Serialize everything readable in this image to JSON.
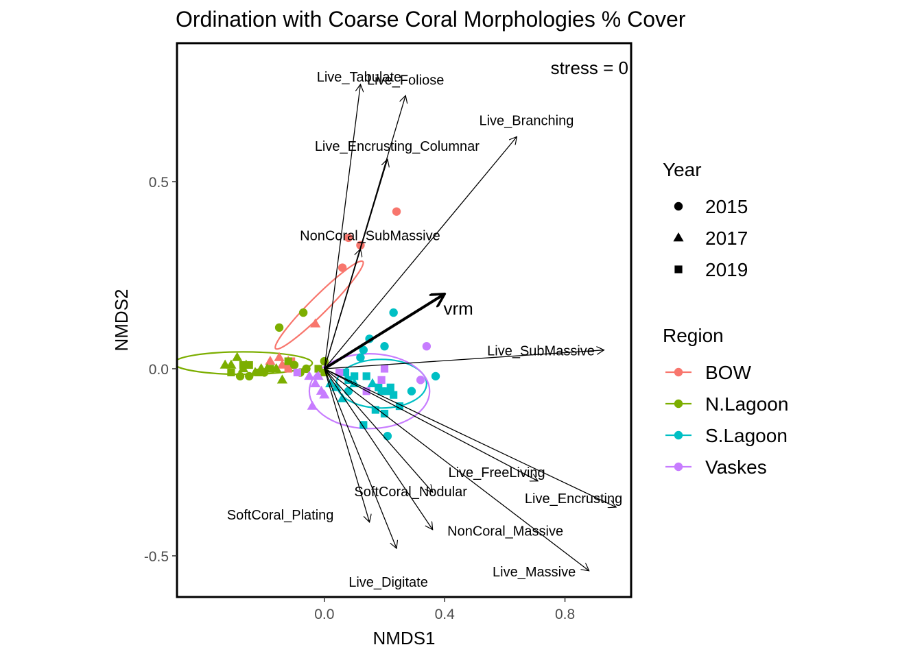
{
  "chart_data": {
    "type": "scatter",
    "title": "Ordination with Coarse Coral Morphologies % Cover",
    "xlabel": "NMDS1",
    "ylabel": "NMDS2",
    "xlim": [
      -0.49,
      1.02
    ],
    "ylim": [
      -0.61,
      0.87
    ],
    "x_ticks": [
      {
        "v": 0.0,
        "label": "0.0"
      },
      {
        "v": 0.4,
        "label": "0.4"
      },
      {
        "v": 0.8,
        "label": "0.8"
      }
    ],
    "y_ticks": [
      {
        "v": 0.5,
        "label": "0.5"
      },
      {
        "v": 0.0,
        "label": "0.0"
      },
      {
        "v": -0.5,
        "label": "-0.5"
      }
    ],
    "annotation": "stress = 0",
    "colors": {
      "BOW": "#F8766D",
      "N.Lagoon": "#7CAE00",
      "S.Lagoon": "#00BFC4",
      "Vaskes": "#C77CFF"
    },
    "legend_year": {
      "title": "Year",
      "items": [
        {
          "label": "2015",
          "shape": "circle"
        },
        {
          "label": "2017",
          "shape": "triangle"
        },
        {
          "label": "2019",
          "shape": "square"
        }
      ]
    },
    "legend_region": {
      "title": "Region",
      "items": [
        {
          "label": "BOW"
        },
        {
          "label": "N.Lagoon"
        },
        {
          "label": "S.Lagoon"
        },
        {
          "label": "Vaskes"
        }
      ]
    },
    "vectors": [
      {
        "label": "Live_Foliose",
        "x": 0.27,
        "y": 0.73
      },
      {
        "label": "Live_Tabulate",
        "x": 0.12,
        "y": 0.76
      },
      {
        "label": "Live_Branching",
        "x": 0.64,
        "y": 0.62
      },
      {
        "label": "Live_Encrusting_Columnar",
        "x": 0.21,
        "y": 0.56
      },
      {
        "label": "NonCoral_SubMassive",
        "x": 0.12,
        "y": 0.32
      },
      {
        "label": "Live_SubMassive",
        "x": 0.93,
        "y": 0.05
      },
      {
        "label": "Live_FreeLiving",
        "x": 0.71,
        "y": -0.3
      },
      {
        "label": "Live_Encrusting",
        "x": 0.97,
        "y": -0.37
      },
      {
        "label": "SoftCoral_Nodular",
        "x": 0.36,
        "y": -0.33
      },
      {
        "label": "NonCoral_Massive",
        "x": 0.36,
        "y": -0.43
      },
      {
        "label": "SoftCoral_Plating",
        "x": 0.15,
        "y": -0.41
      },
      {
        "label": "Live_Digitate",
        "x": 0.24,
        "y": -0.48
      },
      {
        "label": "Live_Massive",
        "x": 0.88,
        "y": -0.54
      }
    ],
    "vrm_vector": {
      "label": "vrm",
      "x": 0.4,
      "y": 0.2
    },
    "ellipses": [
      {
        "region": "BOW",
        "cx": -0.017,
        "cy": 0.17,
        "rx": 0.205,
        "ry": 0.023,
        "angle_deg": 45
      },
      {
        "region": "N.Lagoon",
        "cx": -0.27,
        "cy": 0.015,
        "rx": 0.23,
        "ry": 0.03,
        "angle_deg": 0
      },
      {
        "region": "S.Lagoon",
        "cx": 0.19,
        "cy": -0.04,
        "rx": 0.15,
        "ry": 0.065,
        "angle_deg": 0
      },
      {
        "region": "Vaskes",
        "cx": 0.15,
        "cy": -0.06,
        "rx": 0.2,
        "ry": 0.1,
        "angle_deg": 0
      }
    ],
    "points": [
      {
        "region": "BOW",
        "year": 2015,
        "x": 0.08,
        "y": 0.35
      },
      {
        "region": "BOW",
        "year": 2015,
        "x": 0.12,
        "y": 0.33
      },
      {
        "region": "BOW",
        "year": 2015,
        "x": 0.06,
        "y": 0.27
      },
      {
        "region": "BOW",
        "year": 2015,
        "x": 0.24,
        "y": 0.42
      },
      {
        "region": "BOW",
        "year": 2017,
        "x": -0.03,
        "y": 0.12
      },
      {
        "region": "BOW",
        "year": 2017,
        "x": -0.15,
        "y": 0.03
      },
      {
        "region": "BOW",
        "year": 2017,
        "x": -0.18,
        "y": 0.02
      },
      {
        "region": "BOW",
        "year": 2017,
        "x": -0.12,
        "y": 0.02
      },
      {
        "region": "BOW",
        "year": 2017,
        "x": -0.14,
        "y": 0.01
      },
      {
        "region": "BOW",
        "year": 2019,
        "x": -0.11,
        "y": 0.02
      },
      {
        "region": "BOW",
        "year": 2019,
        "x": -0.12,
        "y": 0.0
      },
      {
        "region": "N.Lagoon",
        "year": 2015,
        "x": -0.15,
        "y": 0.11
      },
      {
        "region": "N.Lagoon",
        "year": 2015,
        "x": -0.07,
        "y": 0.15
      },
      {
        "region": "N.Lagoon",
        "year": 2015,
        "x": -0.06,
        "y": 0.0
      },
      {
        "region": "N.Lagoon",
        "year": 2015,
        "x": 0.0,
        "y": 0.02
      },
      {
        "region": "N.Lagoon",
        "year": 2015,
        "x": -0.2,
        "y": -0.01
      },
      {
        "region": "N.Lagoon",
        "year": 2015,
        "x": -0.25,
        "y": -0.02
      },
      {
        "region": "N.Lagoon",
        "year": 2015,
        "x": -0.28,
        "y": -0.02
      },
      {
        "region": "N.Lagoon",
        "year": 2015,
        "x": -0.1,
        "y": 0.01
      },
      {
        "region": "N.Lagoon",
        "year": 2015,
        "x": -0.08,
        "y": -0.01
      },
      {
        "region": "N.Lagoon",
        "year": 2017,
        "x": -0.31,
        "y": 0.01
      },
      {
        "region": "N.Lagoon",
        "year": 2017,
        "x": -0.29,
        "y": 0.03
      },
      {
        "region": "N.Lagoon",
        "year": 2017,
        "x": -0.27,
        "y": 0.0
      },
      {
        "region": "N.Lagoon",
        "year": 2017,
        "x": -0.33,
        "y": 0.01
      },
      {
        "region": "N.Lagoon",
        "year": 2017,
        "x": -0.23,
        "y": -0.01
      },
      {
        "region": "N.Lagoon",
        "year": 2017,
        "x": -0.21,
        "y": 0.0
      },
      {
        "region": "N.Lagoon",
        "year": 2017,
        "x": -0.19,
        "y": 0.0
      },
      {
        "region": "N.Lagoon",
        "year": 2017,
        "x": -0.16,
        "y": 0.0
      },
      {
        "region": "N.Lagoon",
        "year": 2017,
        "x": -0.14,
        "y": -0.03
      },
      {
        "region": "N.Lagoon",
        "year": 2017,
        "x": -0.26,
        "y": 0.01
      },
      {
        "region": "N.Lagoon",
        "year": 2019,
        "x": -0.31,
        "y": -0.01
      },
      {
        "region": "N.Lagoon",
        "year": 2019,
        "x": -0.27,
        "y": 0.01
      },
      {
        "region": "N.Lagoon",
        "year": 2019,
        "x": -0.25,
        "y": 0.01
      },
      {
        "region": "N.Lagoon",
        "year": 2019,
        "x": -0.22,
        "y": -0.01
      },
      {
        "region": "N.Lagoon",
        "year": 2019,
        "x": -0.18,
        "y": 0.0
      },
      {
        "region": "N.Lagoon",
        "year": 2019,
        "x": -0.12,
        "y": 0.02
      },
      {
        "region": "N.Lagoon",
        "year": 2019,
        "x": -0.02,
        "y": 0.0
      },
      {
        "region": "N.Lagoon",
        "year": 2019,
        "x": 0.0,
        "y": -0.01
      },
      {
        "region": "S.Lagoon",
        "year": 2015,
        "x": 0.23,
        "y": 0.15
      },
      {
        "region": "S.Lagoon",
        "year": 2015,
        "x": 0.15,
        "y": 0.08
      },
      {
        "region": "S.Lagoon",
        "year": 2015,
        "x": 0.2,
        "y": 0.06
      },
      {
        "region": "S.Lagoon",
        "year": 2015,
        "x": 0.13,
        "y": 0.05
      },
      {
        "region": "S.Lagoon",
        "year": 2015,
        "x": 0.12,
        "y": 0.03
      },
      {
        "region": "S.Lagoon",
        "year": 2015,
        "x": 0.29,
        "y": -0.06
      },
      {
        "region": "S.Lagoon",
        "year": 2015,
        "x": 0.37,
        "y": -0.02
      },
      {
        "region": "S.Lagoon",
        "year": 2015,
        "x": 0.21,
        "y": -0.18
      },
      {
        "region": "S.Lagoon",
        "year": 2015,
        "x": 0.08,
        "y": -0.06
      },
      {
        "region": "S.Lagoon",
        "year": 2017,
        "x": 0.02,
        "y": -0.04
      },
      {
        "region": "S.Lagoon",
        "year": 2017,
        "x": 0.04,
        "y": -0.05
      },
      {
        "region": "S.Lagoon",
        "year": 2017,
        "x": 0.06,
        "y": -0.08
      },
      {
        "region": "S.Lagoon",
        "year": 2017,
        "x": 0.1,
        "y": -0.04
      },
      {
        "region": "S.Lagoon",
        "year": 2017,
        "x": 0.16,
        "y": -0.04
      },
      {
        "region": "S.Lagoon",
        "year": 2019,
        "x": 0.07,
        "y": -0.01
      },
      {
        "region": "S.Lagoon",
        "year": 2019,
        "x": 0.08,
        "y": -0.03
      },
      {
        "region": "S.Lagoon",
        "year": 2019,
        "x": 0.1,
        "y": -0.02
      },
      {
        "region": "S.Lagoon",
        "year": 2019,
        "x": 0.14,
        "y": -0.02
      },
      {
        "region": "S.Lagoon",
        "year": 2019,
        "x": 0.18,
        "y": -0.05
      },
      {
        "region": "S.Lagoon",
        "year": 2019,
        "x": 0.19,
        "y": -0.06
      },
      {
        "region": "S.Lagoon",
        "year": 2019,
        "x": 0.22,
        "y": -0.05
      },
      {
        "region": "S.Lagoon",
        "year": 2019,
        "x": 0.23,
        "y": -0.07
      },
      {
        "region": "S.Lagoon",
        "year": 2019,
        "x": 0.25,
        "y": -0.1
      },
      {
        "region": "S.Lagoon",
        "year": 2019,
        "x": 0.2,
        "y": -0.12
      },
      {
        "region": "S.Lagoon",
        "year": 2019,
        "x": 0.13,
        "y": -0.15
      },
      {
        "region": "S.Lagoon",
        "year": 2019,
        "x": 0.17,
        "y": -0.11
      },
      {
        "region": "S.Lagoon",
        "year": 2019,
        "x": 0.21,
        "y": -0.06
      },
      {
        "region": "Vaskes",
        "year": 2015,
        "x": 0.34,
        "y": 0.06
      },
      {
        "region": "Vaskes",
        "year": 2015,
        "x": 0.32,
        "y": -0.03
      },
      {
        "region": "Vaskes",
        "year": 2017,
        "x": -0.03,
        "y": -0.04
      },
      {
        "region": "Vaskes",
        "year": 2017,
        "x": -0.01,
        "y": -0.06
      },
      {
        "region": "Vaskes",
        "year": 2017,
        "x": -0.04,
        "y": -0.1
      },
      {
        "region": "Vaskes",
        "year": 2017,
        "x": -0.02,
        "y": -0.02
      },
      {
        "region": "Vaskes",
        "year": 2017,
        "x": 0.0,
        "y": -0.07
      },
      {
        "region": "Vaskes",
        "year": 2017,
        "x": -0.05,
        "y": -0.02
      },
      {
        "region": "Vaskes",
        "year": 2019,
        "x": -0.09,
        "y": -0.01
      },
      {
        "region": "Vaskes",
        "year": 2019,
        "x": 0.05,
        "y": -0.01
      },
      {
        "region": "Vaskes",
        "year": 2019,
        "x": 0.14,
        "y": -0.06
      },
      {
        "region": "Vaskes",
        "year": 2019,
        "x": 0.2,
        "y": 0.0
      },
      {
        "region": "Vaskes",
        "year": 2019,
        "x": 0.19,
        "y": -0.03
      }
    ]
  }
}
